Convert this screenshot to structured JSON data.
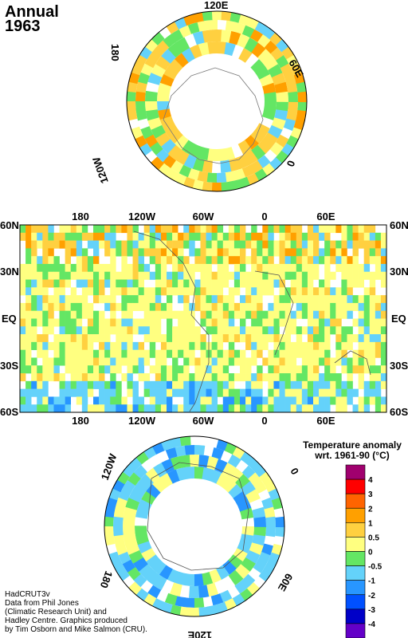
{
  "title": {
    "line1": "Annual",
    "line2": "1963"
  },
  "north_labels": [
    "120E",
    "60E",
    "0",
    "120W",
    "180"
  ],
  "map_labels_top": [
    "180",
    "120W",
    "60W",
    "0",
    "60E"
  ],
  "map_labels_bottom": [
    "180",
    "120W",
    "60W",
    "0",
    "60E"
  ],
  "lat_labels": [
    "60N",
    "30N",
    "EQ",
    "30S",
    "60S"
  ],
  "south_labels": [
    "120W",
    "0",
    "60E",
    "120E",
    "180"
  ],
  "legend": {
    "title1": "Temperature anomaly",
    "title2": "wrt. 1961-90  (°C)",
    "ticks": [
      "4",
      "3",
      "2",
      "1",
      "0.5",
      "0",
      "-0.5",
      "-1",
      "-2",
      "-3",
      "-4"
    ],
    "colors": [
      "#a0006e",
      "#ff0000",
      "#ff6400",
      "#ffa000",
      "#ffd040",
      "#ffff80",
      "#64e664",
      "#64d2fa",
      "#2896ff",
      "#0050ff",
      "#0000c8",
      "#6400c8"
    ]
  },
  "credits": [
    "HadCRUT3v",
    "Data from Phil Jones",
    "(Climatic Research Unit) and",
    "Hadley Centre.  Graphics produced",
    "by Tim Osborn and Mike Salmon (CRU)."
  ]
}
